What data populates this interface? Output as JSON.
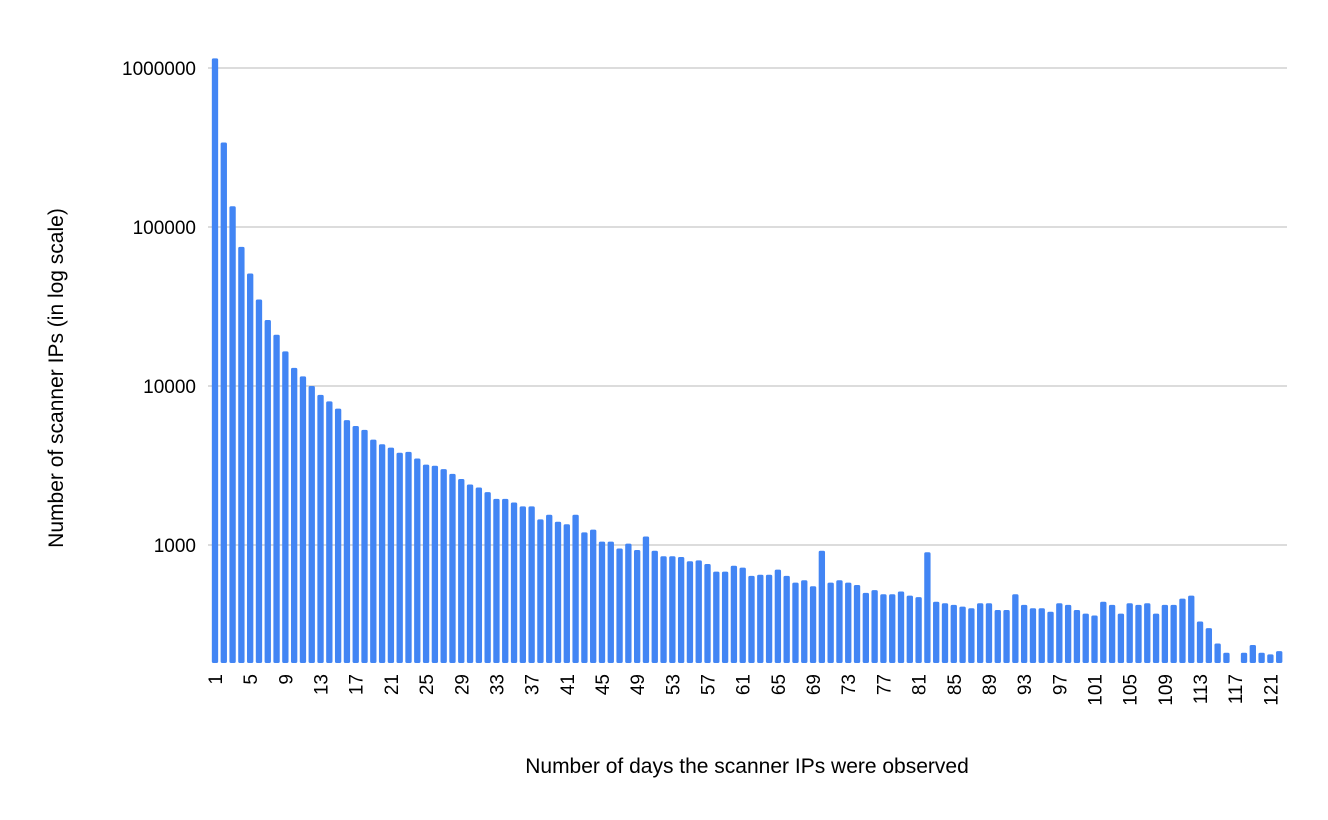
{
  "chart_data": {
    "type": "bar",
    "title": "",
    "xlabel": "Number of days the scanner IPs were observed",
    "ylabel": "Number of scanner IPs (in log scale)",
    "y_scale": "log",
    "ylim": [
      200,
      1300000
    ],
    "y_ticks": [
      1000,
      10000,
      100000,
      1000000
    ],
    "y_tick_labels": [
      "1000",
      "10000",
      "100000",
      "1000000"
    ],
    "x_tick_labels": [
      "1",
      "5",
      "9",
      "13",
      "17",
      "21",
      "25",
      "29",
      "33",
      "37",
      "41",
      "45",
      "49",
      "53",
      "57",
      "61",
      "65",
      "69",
      "73",
      "77",
      "81",
      "85",
      "89",
      "93",
      "97",
      "101",
      "105",
      "109",
      "113",
      "117",
      "121"
    ],
    "grid": true,
    "legend": "none",
    "bar_color": "#4285f4",
    "categories": [
      1,
      2,
      3,
      4,
      5,
      6,
      7,
      8,
      9,
      10,
      11,
      12,
      13,
      14,
      15,
      16,
      17,
      18,
      19,
      20,
      21,
      22,
      23,
      24,
      25,
      26,
      27,
      28,
      29,
      30,
      31,
      32,
      33,
      34,
      35,
      36,
      37,
      38,
      39,
      40,
      41,
      42,
      43,
      44,
      45,
      46,
      47,
      48,
      49,
      50,
      51,
      52,
      53,
      54,
      55,
      56,
      57,
      58,
      59,
      60,
      61,
      62,
      63,
      64,
      65,
      66,
      67,
      68,
      69,
      70,
      71,
      72,
      73,
      74,
      75,
      76,
      77,
      78,
      79,
      80,
      81,
      82,
      83,
      84,
      85,
      86,
      87,
      88,
      89,
      90,
      91,
      92,
      93,
      94,
      95,
      96,
      97,
      98,
      99,
      100,
      101,
      102,
      103,
      104,
      105,
      106,
      107,
      108,
      109,
      110,
      111,
      112,
      113,
      114,
      115,
      116,
      117,
      118,
      119,
      120,
      121,
      122
    ],
    "values": [
      1150000,
      340000,
      135000,
      75000,
      51000,
      35000,
      26000,
      21000,
      16500,
      13000,
      11500,
      10000,
      8800,
      8000,
      7200,
      6100,
      5600,
      5300,
      4600,
      4300,
      4100,
      3800,
      3850,
      3500,
      3200,
      3150,
      3000,
      2800,
      2600,
      2400,
      2300,
      2150,
      1950,
      1950,
      1850,
      1750,
      1750,
      1450,
      1550,
      1400,
      1350,
      1550,
      1200,
      1250,
      1050,
      1050,
      950,
      1020,
      930,
      1130,
      920,
      850,
      850,
      840,
      790,
      800,
      760,
      680,
      680,
      740,
      720,
      640,
      650,
      650,
      700,
      640,
      580,
      600,
      550,
      920,
      580,
      600,
      580,
      560,
      500,
      520,
      490,
      490,
      510,
      480,
      470,
      900,
      440,
      430,
      420,
      410,
      400,
      430,
      430,
      390,
      390,
      490,
      420,
      400,
      400,
      380,
      430,
      420,
      390,
      370,
      360,
      440,
      420,
      370,
      430,
      420,
      430,
      370,
      420,
      420,
      460,
      480,
      330,
      300,
      240,
      210,
      null,
      210,
      235,
      210,
      205,
      215
    ]
  }
}
